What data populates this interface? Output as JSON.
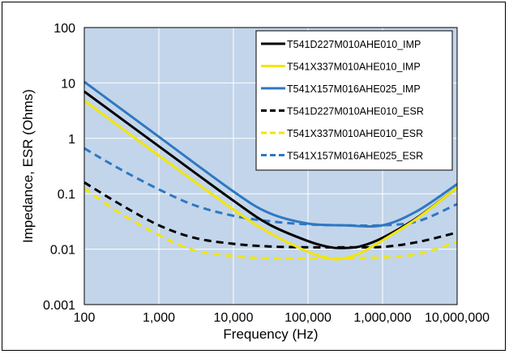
{
  "chart_data": {
    "type": "line",
    "title": "",
    "xlabel": "Frequency (Hz)",
    "ylabel": "Impedance, ESR (Ohms)",
    "xscale": "log",
    "yscale": "log",
    "xlim": [
      100,
      10000000
    ],
    "ylim": [
      0.001,
      100
    ],
    "grid": true,
    "legend_position": "top-right",
    "plot_background": "#c3d5ea",
    "x_ticks": [
      100,
      1000,
      10000,
      100000,
      1000000,
      10000000
    ],
    "x_tick_labels": [
      "100",
      "1,000",
      "10,000",
      "100,000",
      "1,000,000",
      "10,000,000"
    ],
    "y_ticks": [
      0.001,
      0.01,
      0.1,
      1,
      10,
      100
    ],
    "y_tick_labels": [
      "0.001",
      "0.01",
      "0.1",
      "1",
      "10",
      "100"
    ],
    "series": [
      {
        "name": "T541D227M010AHE010_IMP",
        "color": "#000000",
        "style": "solid",
        "x": [
          100,
          1000,
          10000,
          30000,
          100000,
          200000,
          300000,
          500000,
          1000000,
          3000000,
          10000000
        ],
        "y": [
          7,
          0.72,
          0.075,
          0.028,
          0.014,
          0.0108,
          0.0105,
          0.0112,
          0.016,
          0.038,
          0.13
        ]
      },
      {
        "name": "T541X337M010AHE010_IMP",
        "color": "#f2e600",
        "style": "solid",
        "x": [
          100,
          1000,
          10000,
          30000,
          100000,
          200000,
          300000,
          500000,
          1000000,
          3000000,
          10000000
        ],
        "y": [
          4.8,
          0.49,
          0.052,
          0.02,
          0.009,
          0.0068,
          0.0068,
          0.0085,
          0.0145,
          0.037,
          0.13
        ]
      },
      {
        "name": "T541X157M016AHE025_IMP",
        "color": "#2e78c2",
        "style": "solid",
        "x": [
          100,
          1000,
          10000,
          30000,
          100000,
          300000,
          1000000,
          3000000,
          10000000
        ],
        "y": [
          10.5,
          1.07,
          0.11,
          0.045,
          0.029,
          0.027,
          0.027,
          0.05,
          0.15
        ]
      },
      {
        "name": "T541D227M010AHE010_ESR",
        "color": "#000000",
        "style": "dashed",
        "x": [
          100,
          300,
          1000,
          3000,
          10000,
          30000,
          100000,
          300000,
          1000000,
          3000000,
          10000000
        ],
        "y": [
          0.16,
          0.065,
          0.027,
          0.016,
          0.0125,
          0.0112,
          0.0108,
          0.0108,
          0.011,
          0.0135,
          0.02
        ]
      },
      {
        "name": "T541X337M010AHE010_ESR",
        "color": "#f2e600",
        "style": "dashed",
        "x": [
          100,
          300,
          1000,
          3000,
          10000,
          30000,
          100000,
          300000,
          1000000,
          3000000,
          10000000
        ],
        "y": [
          0.125,
          0.045,
          0.018,
          0.0095,
          0.0075,
          0.0068,
          0.0068,
          0.0069,
          0.0071,
          0.0082,
          0.0135
        ]
      },
      {
        "name": "T541X157M016AHE025_ESR",
        "color": "#2e78c2",
        "style": "dashed",
        "x": [
          100,
          300,
          1000,
          3000,
          10000,
          30000,
          100000,
          300000,
          1000000,
          3000000,
          10000000
        ],
        "y": [
          0.66,
          0.28,
          0.12,
          0.062,
          0.04,
          0.032,
          0.028,
          0.027,
          0.027,
          0.032,
          0.065
        ]
      }
    ]
  }
}
